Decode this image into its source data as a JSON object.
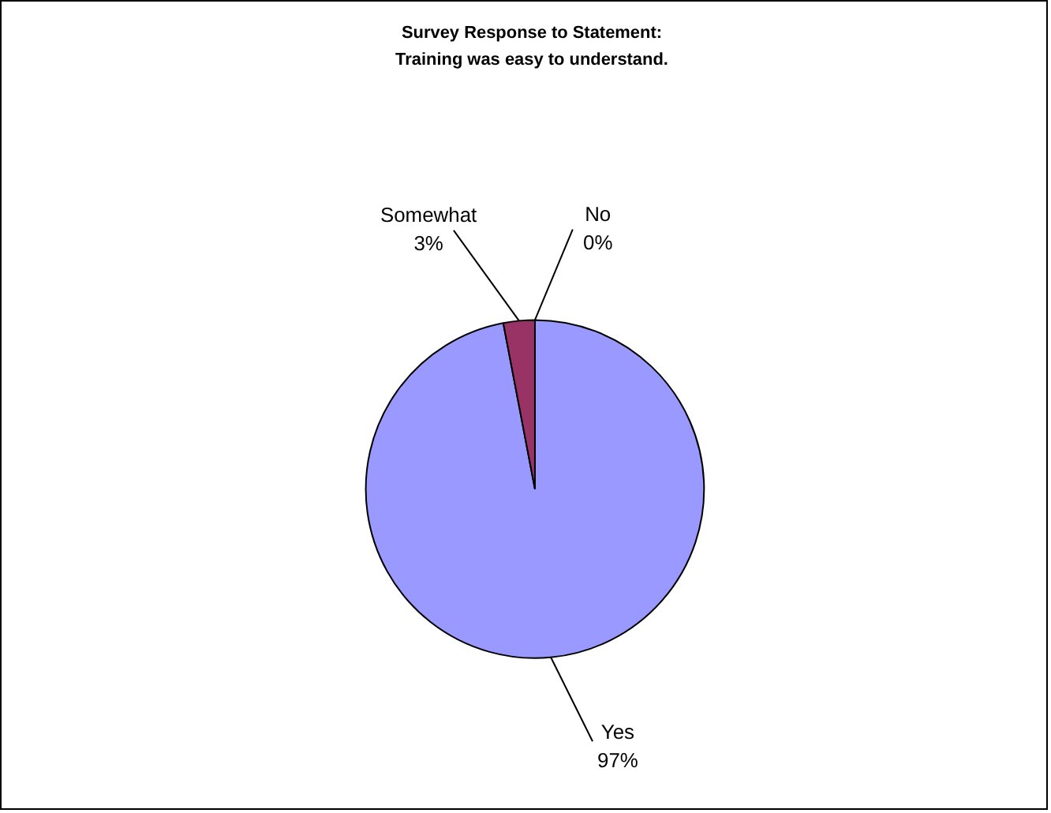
{
  "chart_data": {
    "type": "pie",
    "title": "Survey Response to Statement:\nTraining was easy to understand.",
    "categories": [
      "Yes",
      "Somewhat",
      "No"
    ],
    "values": [
      97,
      3,
      0
    ],
    "colors": [
      "#9999ff",
      "#993366",
      "#ffffcc"
    ],
    "value_labels": [
      "97%",
      "3%",
      "0%"
    ],
    "legend": false
  }
}
